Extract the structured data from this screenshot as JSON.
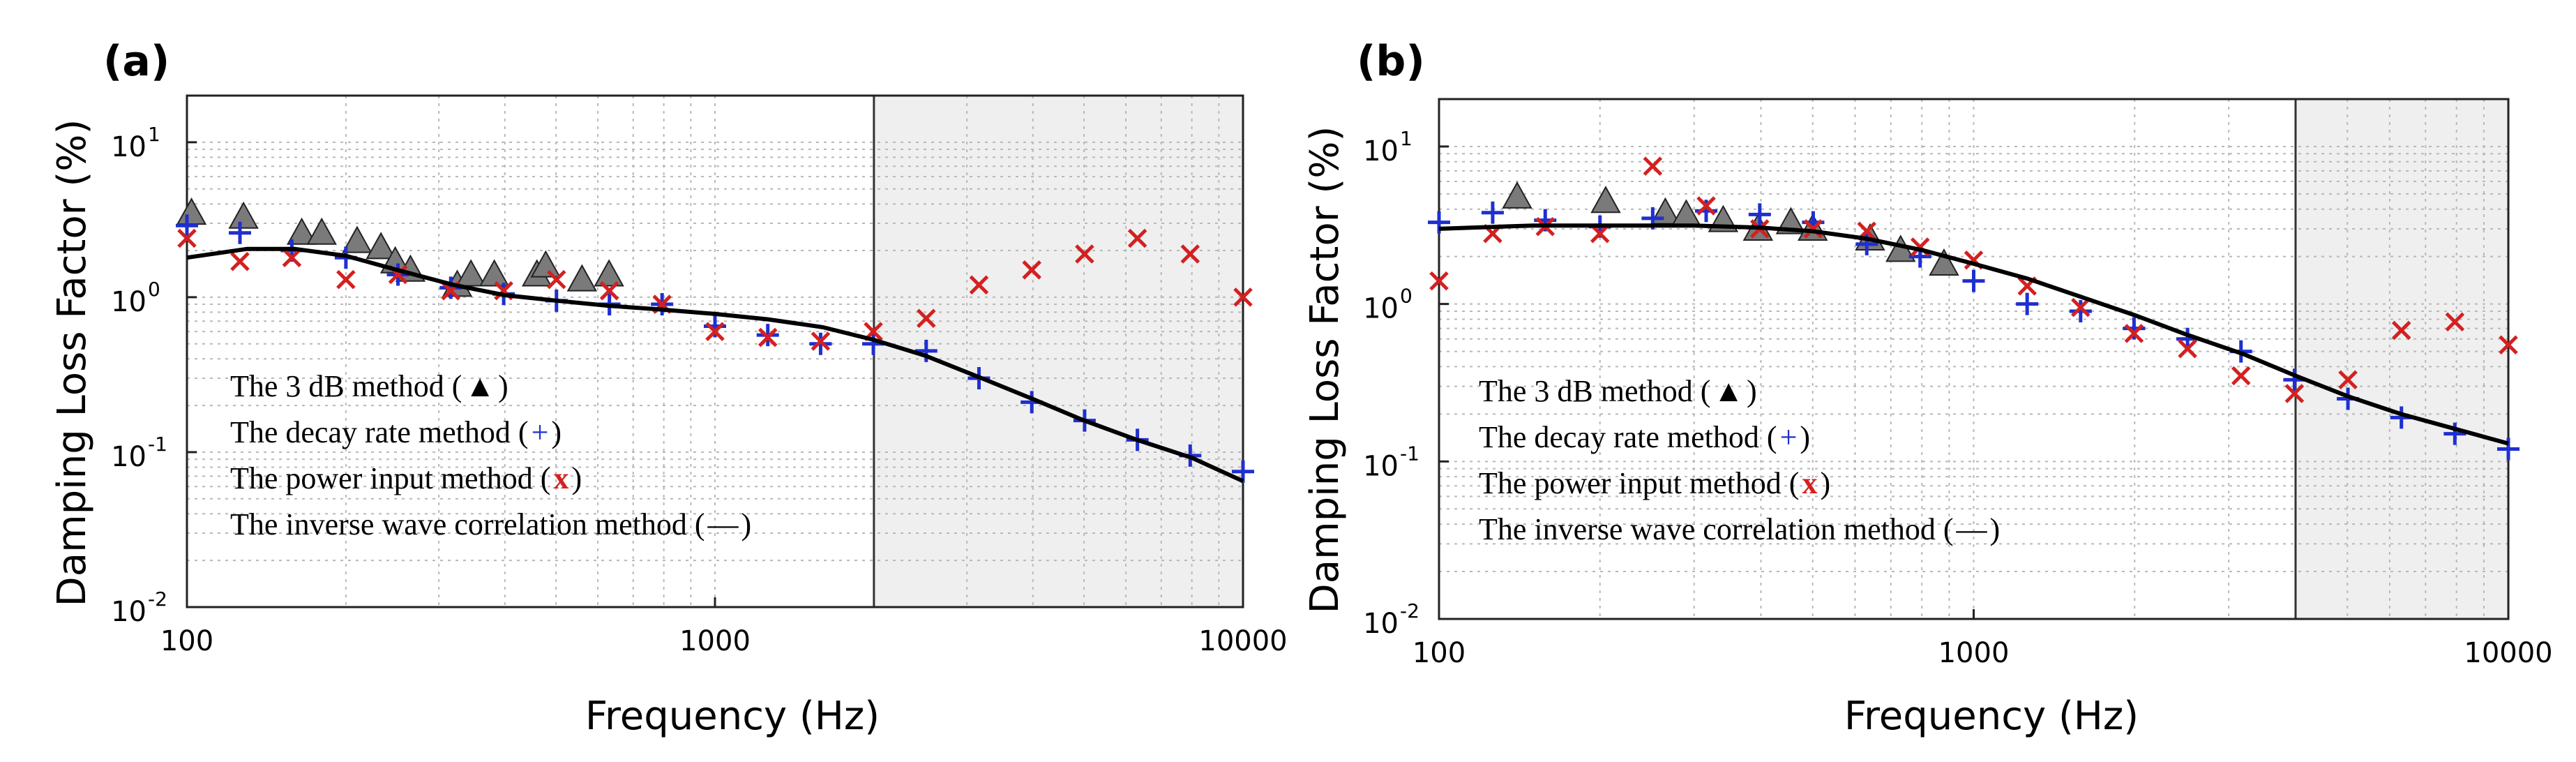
{
  "chart_data": [
    {
      "type": "scatter",
      "panel_label": "(a)",
      "title": "",
      "xlabel": "Frequency (Hz)",
      "ylabel": "Damping Loss Factor (%)",
      "xscale": "log",
      "yscale": "log",
      "xlim": [
        100,
        10000
      ],
      "ylim": [
        0.01,
        20
      ],
      "x_tick_labels": [
        "100",
        "1000",
        "10000"
      ],
      "y_tick_labels": [
        "10^-2",
        "10^-1",
        "10^0",
        "10^1"
      ],
      "grid": true,
      "shaded_region": [
        2000,
        10000
      ],
      "legend": {
        "placement": "bottom-left",
        "entries": [
          {
            "text": "The 3 dB method (",
            "symbol": "▲",
            "symbol_color": "#000000"
          },
          {
            "text": "The decay rate method (",
            "symbol": "+",
            "symbol_color": "#1f2fd0"
          },
          {
            "text": "The power input method (",
            "symbol": "x",
            "symbol_color": "#d42020"
          },
          {
            "text": "The inverse wave correlation method (",
            "symbol": "—",
            "symbol_color": "#000000"
          }
        ]
      },
      "series": [
        {
          "marker": "triangle",
          "color": "#7a7a7a",
          "points": [
            [
              102,
              3.5
            ],
            [
              128,
              3.3
            ],
            [
              165,
              2.6
            ],
            [
              180,
              2.6
            ],
            [
              210,
              2.3
            ],
            [
              233,
              2.1
            ],
            [
              248,
              1.7
            ],
            [
              265,
              1.5
            ],
            [
              325,
              1.2
            ],
            [
              345,
              1.4
            ],
            [
              382,
              1.4
            ],
            [
              460,
              1.4
            ],
            [
              478,
              1.6
            ],
            [
              560,
              1.3
            ],
            [
              630,
              1.4
            ]
          ]
        },
        {
          "marker": "plus",
          "color": "#1f2fd0",
          "points": [
            [
              100,
              2.9
            ],
            [
              126,
              2.6
            ],
            [
              158,
              2.0
            ],
            [
              200,
              1.8
            ],
            [
              251,
              1.4
            ],
            [
              316,
              1.15
            ],
            [
              398,
              1.05
            ],
            [
              501,
              0.95
            ],
            [
              631,
              0.9
            ],
            [
              794,
              0.9
            ],
            [
              1000,
              0.65
            ],
            [
              1259,
              0.57
            ],
            [
              1585,
              0.5
            ],
            [
              1995,
              0.5
            ],
            [
              2512,
              0.45
            ],
            [
              3162,
              0.3
            ],
            [
              3981,
              0.21
            ],
            [
              5012,
              0.16
            ],
            [
              6310,
              0.12
            ],
            [
              7943,
              0.095
            ],
            [
              10000,
              0.075
            ]
          ]
        },
        {
          "marker": "x",
          "color": "#d42020",
          "points": [
            [
              100,
              2.4
            ],
            [
              126,
              1.7
            ],
            [
              158,
              1.8
            ],
            [
              200,
              1.3
            ],
            [
              251,
              1.4
            ],
            [
              316,
              1.1
            ],
            [
              398,
              1.1
            ],
            [
              501,
              1.3
            ],
            [
              631,
              1.1
            ],
            [
              794,
              0.9
            ],
            [
              1000,
              0.6
            ],
            [
              1259,
              0.55
            ],
            [
              1585,
              0.52
            ],
            [
              1995,
              0.6
            ],
            [
              2512,
              0.73
            ],
            [
              3162,
              1.2
            ],
            [
              3981,
              1.5
            ],
            [
              5012,
              1.9
            ],
            [
              6310,
              2.4
            ],
            [
              7943,
              1.9
            ],
            [
              10000,
              1.0
            ]
          ]
        },
        {
          "marker": "line",
          "color": "#000000",
          "points": [
            [
              100,
              1.8
            ],
            [
              130,
              2.05
            ],
            [
              160,
              2.05
            ],
            [
              200,
              1.85
            ],
            [
              250,
              1.5
            ],
            [
              320,
              1.2
            ],
            [
              400,
              1.03
            ],
            [
              500,
              0.95
            ],
            [
              630,
              0.88
            ],
            [
              800,
              0.83
            ],
            [
              1000,
              0.78
            ],
            [
              1260,
              0.72
            ],
            [
              1600,
              0.64
            ],
            [
              2000,
              0.53
            ],
            [
              2500,
              0.42
            ],
            [
              3200,
              0.3
            ],
            [
              4000,
              0.22
            ],
            [
              5000,
              0.16
            ],
            [
              6300,
              0.12
            ],
            [
              8000,
              0.092
            ],
            [
              10000,
              0.065
            ]
          ]
        }
      ]
    },
    {
      "type": "scatter",
      "panel_label": "(b)",
      "title": "",
      "xlabel": "Frequency (Hz)",
      "ylabel": "Damping Loss Factor (%)",
      "xscale": "log",
      "yscale": "log",
      "xlim": [
        100,
        10000
      ],
      "ylim": [
        0.01,
        20
      ],
      "x_tick_labels": [
        "100",
        "1000",
        "10000"
      ],
      "y_tick_labels": [
        "10^-2",
        "10^-1",
        "10^0",
        "10^1"
      ],
      "grid": true,
      "shaded_region": [
        4000,
        10000
      ],
      "legend": {
        "placement": "bottom-left",
        "entries": [
          {
            "text": "The 3 dB method (",
            "symbol": "▲",
            "symbol_color": "#000000"
          },
          {
            "text": "The decay rate method (",
            "symbol": "+",
            "symbol_color": "#1f2fd0"
          },
          {
            "text": "The power input method (",
            "symbol": "x",
            "symbol_color": "#d42020"
          },
          {
            "text": "The inverse wave correlation method (",
            "symbol": "—",
            "symbol_color": "#000000"
          }
        ]
      },
      "series": [
        {
          "marker": "triangle",
          "color": "#7a7a7a",
          "points": [
            [
              140,
              4.8
            ],
            [
              205,
              4.5
            ],
            [
              265,
              3.8
            ],
            [
              290,
              3.7
            ],
            [
              340,
              3.4
            ],
            [
              395,
              3.0
            ],
            [
              455,
              3.3
            ],
            [
              500,
              3.0
            ],
            [
              640,
              2.6
            ],
            [
              730,
              2.2
            ],
            [
              880,
              1.8
            ]
          ]
        },
        {
          "marker": "plus",
          "color": "#1f2fd0",
          "points": [
            [
              100,
              3.3
            ],
            [
              126,
              3.8
            ],
            [
              158,
              3.4
            ],
            [
              200,
              3.1
            ],
            [
              251,
              3.5
            ],
            [
              316,
              3.9
            ],
            [
              398,
              3.7
            ],
            [
              501,
              3.3
            ],
            [
              631,
              2.4
            ],
            [
              794,
              2.0
            ],
            [
              1000,
              1.4
            ],
            [
              1259,
              1.0
            ],
            [
              1585,
              0.9
            ],
            [
              1995,
              0.7
            ],
            [
              2512,
              0.6
            ],
            [
              3162,
              0.5
            ],
            [
              3981,
              0.33
            ],
            [
              5012,
              0.25
            ],
            [
              6310,
              0.19
            ],
            [
              7943,
              0.15
            ],
            [
              10000,
              0.12
            ]
          ]
        },
        {
          "marker": "x",
          "color": "#d42020",
          "points": [
            [
              100,
              1.4
            ],
            [
              126,
              2.8
            ],
            [
              158,
              3.1
            ],
            [
              200,
              2.8
            ],
            [
              251,
              7.5
            ],
            [
              316,
              4.2
            ],
            [
              398,
              3.0
            ],
            [
              501,
              3.0
            ],
            [
              631,
              2.9
            ],
            [
              794,
              2.3
            ],
            [
              1000,
              1.9
            ],
            [
              1259,
              1.3
            ],
            [
              1585,
              0.95
            ],
            [
              1995,
              0.65
            ],
            [
              2512,
              0.52
            ],
            [
              3162,
              0.35
            ],
            [
              3981,
              0.27
            ],
            [
              5012,
              0.33
            ],
            [
              6310,
              0.68
            ],
            [
              7943,
              0.77
            ],
            [
              10000,
              0.55
            ]
          ]
        },
        {
          "marker": "line",
          "color": "#000000",
          "points": [
            [
              100,
              3.0
            ],
            [
              150,
              3.15
            ],
            [
              200,
              3.15
            ],
            [
              300,
              3.15
            ],
            [
              400,
              3.05
            ],
            [
              500,
              2.9
            ],
            [
              630,
              2.6
            ],
            [
              800,
              2.2
            ],
            [
              1000,
              1.8
            ],
            [
              1260,
              1.45
            ],
            [
              1600,
              1.1
            ],
            [
              2000,
              0.85
            ],
            [
              2500,
              0.64
            ],
            [
              3200,
              0.48
            ],
            [
              4000,
              0.35
            ],
            [
              5000,
              0.26
            ],
            [
              6300,
              0.2
            ],
            [
              8000,
              0.16
            ],
            [
              10000,
              0.13
            ]
          ]
        }
      ]
    }
  ]
}
